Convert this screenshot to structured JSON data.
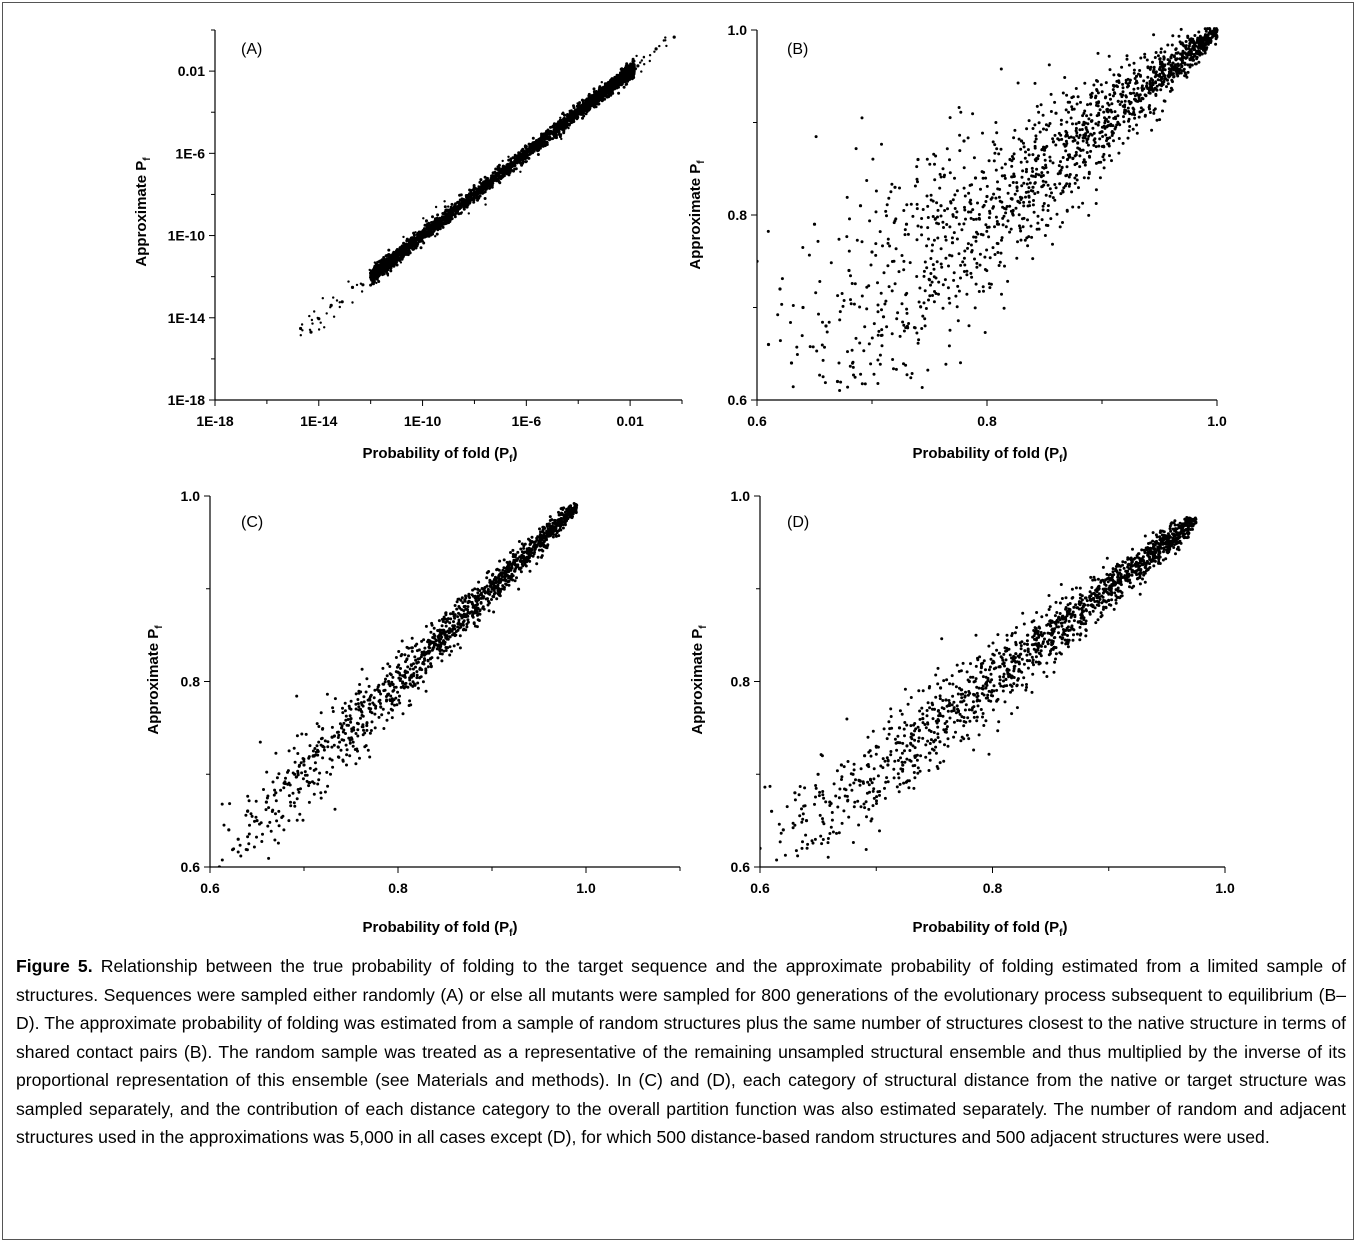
{
  "caption": {
    "figure_label": "Figure 5.",
    "text": " Relationship between the true probability of folding to the target sequence and the approximate probability of folding estimated from a limited sample of structures. Sequences were sampled either randomly (A) or else all mutants were sampled for 800 generations of the evolutionary process subsequent to equilibrium (B–D). The approximate probability of folding was estimated from a sample of random structures plus the same number of structures closest to the native structure in terms of shared contact pairs (B). The random sample was treated as a representative of the remaining unsampled structural ensemble and thus multiplied by the inverse of its proportional representation of this ensemble (see Materials and methods). In (C) and (D), each category of structural distance from the native or target structure was sampled separately, and the contribution of each distance category to the overall partition function was also estimated separately. The number of random and adjacent structures used in the approximations was 5,000 in all cases except (D), for which 500 distance-based random structures and 500 adjacent structures were used."
  },
  "chart_data": [
    {
      "panel": "(A)",
      "type": "scatter",
      "scale": "log",
      "xlabel": "Probability of fold (P",
      "xlabel_sub": "f",
      "xlabel_end": ")",
      "ylabel": "Approximate P",
      "ylabel_sub": "f",
      "xlim": [
        1e-18,
        1
      ],
      "ylim": [
        1e-18,
        1
      ],
      "xticks": [
        {
          "v": 1e-18,
          "label": "1E-18"
        },
        {
          "v": 1e-14,
          "label": "1E-14"
        },
        {
          "v": 1e-10,
          "label": "1E-10"
        },
        {
          "v": 1e-06,
          "label": "1E-6"
        },
        {
          "v": 0.01,
          "label": "0.01"
        }
      ],
      "yticks": [
        {
          "v": 1e-18,
          "label": "1E-18"
        },
        {
          "v": 1e-14,
          "label": "1E-14"
        },
        {
          "v": 1e-10,
          "label": "1E-10"
        },
        {
          "v": 1e-06,
          "label": "1E-6"
        },
        {
          "v": 0.01,
          "label": "0.01"
        }
      ],
      "trend": {
        "x": [
          2e-15,
          0.5
        ],
        "y": [
          2e-15,
          0.5
        ]
      },
      "points": [
        [
          2e-15,
          3e-15
        ],
        [
          5e-15,
          2e-15
        ],
        [
          1e-14,
          9e-15
        ],
        [
          3e-14,
          4e-14
        ],
        [
          8e-14,
          6e-14
        ],
        [
          2e-13,
          3e-13
        ],
        [
          5e-13,
          4e-13
        ],
        [
          1e-12,
          1.5e-12
        ],
        [
          3e-12,
          2e-12
        ],
        [
          8e-12,
          9e-12
        ],
        [
          2e-11,
          1.5e-11
        ],
        [
          5e-11,
          7e-11
        ],
        [
          1e-10,
          8e-11
        ],
        [
          3e-10,
          4e-10
        ],
        [
          8e-10,
          6e-10
        ],
        [
          2e-09,
          2.5e-09
        ],
        [
          5e-09,
          4e-09
        ],
        [
          1e-08,
          1.3e-08
        ],
        [
          3e-08,
          2e-08
        ],
        [
          8e-08,
          9e-08
        ],
        [
          2e-07,
          1.6e-07
        ],
        [
          5e-07,
          6e-07
        ],
        [
          1e-06,
          8e-07
        ],
        [
          3e-06,
          3.5e-06
        ],
        [
          8e-06,
          6e-06
        ],
        [
          2e-05,
          2.4e-05
        ],
        [
          5e-05,
          4e-05
        ],
        [
          0.0001,
          0.00012
        ],
        [
          0.0003,
          0.00026
        ],
        [
          0.0008,
          0.0009
        ],
        [
          0.002,
          0.0018
        ],
        [
          0.005,
          0.006
        ],
        [
          0.02,
          0.018
        ],
        [
          0.1,
          0.12
        ],
        [
          0.5,
          0.45
        ]
      ]
    },
    {
      "panel": "(B)",
      "type": "scatter",
      "scale": "linear",
      "xlabel": "Probability of fold (P",
      "xlabel_sub": "f",
      "xlabel_end": ")",
      "ylabel": "Approximate P",
      "ylabel_sub": "f",
      "xlim": [
        0.6,
        1.0
      ],
      "ylim": [
        0.6,
        1.0
      ],
      "xticks": [
        {
          "v": 0.6,
          "label": "0.6"
        },
        {
          "v": 0.8,
          "label": "0.8"
        },
        {
          "v": 1.0,
          "label": "1.0"
        }
      ],
      "yticks": [
        {
          "v": 0.6,
          "label": "0.6"
        },
        {
          "v": 0.8,
          "label": "0.8"
        },
        {
          "v": 1.0,
          "label": "1.0"
        }
      ],
      "points": [
        [
          0.6,
          0.75
        ],
        [
          0.61,
          0.66
        ],
        [
          0.62,
          0.72
        ],
        [
          0.63,
          0.64
        ],
        [
          0.64,
          0.7
        ],
        [
          0.65,
          0.79
        ],
        [
          0.66,
          0.68
        ],
        [
          0.67,
          0.62
        ],
        [
          0.68,
          0.74
        ],
        [
          0.69,
          0.81
        ],
        [
          0.7,
          0.76
        ],
        [
          0.71,
          0.69
        ],
        [
          0.72,
          0.83
        ],
        [
          0.73,
          0.79
        ],
        [
          0.74,
          0.86
        ],
        [
          0.75,
          0.73
        ],
        [
          0.76,
          0.81
        ],
        [
          0.77,
          0.77
        ],
        [
          0.78,
          0.88
        ],
        [
          0.79,
          0.84
        ],
        [
          0.8,
          0.82
        ],
        [
          0.81,
          0.79
        ],
        [
          0.82,
          0.86
        ],
        [
          0.83,
          0.88
        ],
        [
          0.84,
          0.83
        ],
        [
          0.85,
          0.87
        ],
        [
          0.86,
          0.91
        ],
        [
          0.87,
          0.86
        ],
        [
          0.88,
          0.9
        ],
        [
          0.89,
          0.92
        ],
        [
          0.9,
          0.89
        ],
        [
          0.91,
          0.94
        ],
        [
          0.92,
          0.91
        ],
        [
          0.93,
          0.95
        ],
        [
          0.94,
          0.96
        ],
        [
          0.95,
          0.95
        ],
        [
          0.96,
          0.97
        ],
        [
          0.97,
          0.97
        ],
        [
          0.98,
          0.98
        ],
        [
          0.99,
          0.99
        ],
        [
          1.0,
          1.0
        ]
      ]
    },
    {
      "panel": "(C)",
      "type": "scatter",
      "scale": "linear",
      "xlabel": "Probability of fold (P",
      "xlabel_sub": "f",
      "xlabel_end": ")",
      "ylabel": "Approximate P",
      "ylabel_sub": "f",
      "xlim": [
        0.6,
        1.1
      ],
      "ylim": [
        0.6,
        1.0
      ],
      "xticks": [
        {
          "v": 0.6,
          "label": "0.6"
        },
        {
          "v": 0.8,
          "label": "0.8"
        },
        {
          "v": 1.0,
          "label": "1.0"
        }
      ],
      "yticks": [
        {
          "v": 0.6,
          "label": "0.6"
        },
        {
          "v": 0.8,
          "label": "0.8"
        },
        {
          "v": 1.0,
          "label": "1.0"
        }
      ],
      "points": [
        [
          0.61,
          0.6
        ],
        [
          0.62,
          0.64
        ],
        [
          0.63,
          0.63
        ],
        [
          0.64,
          0.66
        ],
        [
          0.65,
          0.65
        ],
        [
          0.66,
          0.67
        ],
        [
          0.67,
          0.68
        ],
        [
          0.68,
          0.69
        ],
        [
          0.69,
          0.7
        ],
        [
          0.7,
          0.71
        ],
        [
          0.71,
          0.72
        ],
        [
          0.72,
          0.73
        ],
        [
          0.73,
          0.74
        ],
        [
          0.74,
          0.75
        ],
        [
          0.75,
          0.76
        ],
        [
          0.76,
          0.77
        ],
        [
          0.77,
          0.78
        ],
        [
          0.78,
          0.79
        ],
        [
          0.79,
          0.8
        ],
        [
          0.8,
          0.81
        ],
        [
          0.81,
          0.81
        ],
        [
          0.82,
          0.82
        ],
        [
          0.83,
          0.83
        ],
        [
          0.84,
          0.84
        ],
        [
          0.85,
          0.85
        ],
        [
          0.86,
          0.86
        ],
        [
          0.87,
          0.87
        ],
        [
          0.88,
          0.88
        ],
        [
          0.89,
          0.89
        ],
        [
          0.9,
          0.9
        ],
        [
          0.91,
          0.91
        ],
        [
          0.92,
          0.92
        ],
        [
          0.93,
          0.93
        ],
        [
          0.94,
          0.94
        ],
        [
          0.95,
          0.95
        ],
        [
          0.96,
          0.96
        ],
        [
          0.97,
          0.97
        ],
        [
          0.98,
          0.98
        ],
        [
          0.99,
          0.99
        ]
      ]
    },
    {
      "panel": "(D)",
      "type": "scatter",
      "scale": "linear",
      "xlabel": "Probability of fold (P",
      "xlabel_sub": "f",
      "xlabel_end": ")",
      "ylabel": "Approximate P",
      "ylabel_sub": "f",
      "xlim": [
        0.6,
        1.0
      ],
      "ylim": [
        0.6,
        1.0
      ],
      "xticks": [
        {
          "v": 0.6,
          "label": "0.6"
        },
        {
          "v": 0.8,
          "label": "0.8"
        },
        {
          "v": 1.0,
          "label": "1.0"
        }
      ],
      "yticks": [
        {
          "v": 0.6,
          "label": "0.6"
        },
        {
          "v": 0.8,
          "label": "0.8"
        },
        {
          "v": 1.0,
          "label": "1.0"
        }
      ],
      "points": [
        [
          0.6,
          0.62
        ],
        [
          0.61,
          0.66
        ],
        [
          0.62,
          0.64
        ],
        [
          0.63,
          0.68
        ],
        [
          0.64,
          0.65
        ],
        [
          0.65,
          0.7
        ],
        [
          0.66,
          0.67
        ],
        [
          0.67,
          0.71
        ],
        [
          0.68,
          0.7
        ],
        [
          0.69,
          0.72
        ],
        [
          0.7,
          0.73
        ],
        [
          0.71,
          0.71
        ],
        [
          0.72,
          0.75
        ],
        [
          0.73,
          0.74
        ],
        [
          0.74,
          0.76
        ],
        [
          0.75,
          0.77
        ],
        [
          0.76,
          0.78
        ],
        [
          0.77,
          0.77
        ],
        [
          0.78,
          0.8
        ],
        [
          0.79,
          0.81
        ],
        [
          0.8,
          0.82
        ],
        [
          0.81,
          0.82
        ],
        [
          0.82,
          0.83
        ],
        [
          0.83,
          0.84
        ],
        [
          0.84,
          0.85
        ],
        [
          0.85,
          0.86
        ],
        [
          0.86,
          0.87
        ],
        [
          0.87,
          0.88
        ],
        [
          0.88,
          0.89
        ],
        [
          0.89,
          0.9
        ],
        [
          0.9,
          0.9
        ],
        [
          0.91,
          0.91
        ],
        [
          0.92,
          0.92
        ],
        [
          0.93,
          0.93
        ],
        [
          0.94,
          0.94
        ],
        [
          0.95,
          0.95
        ],
        [
          0.96,
          0.96
        ],
        [
          0.97,
          0.97
        ]
      ]
    }
  ]
}
